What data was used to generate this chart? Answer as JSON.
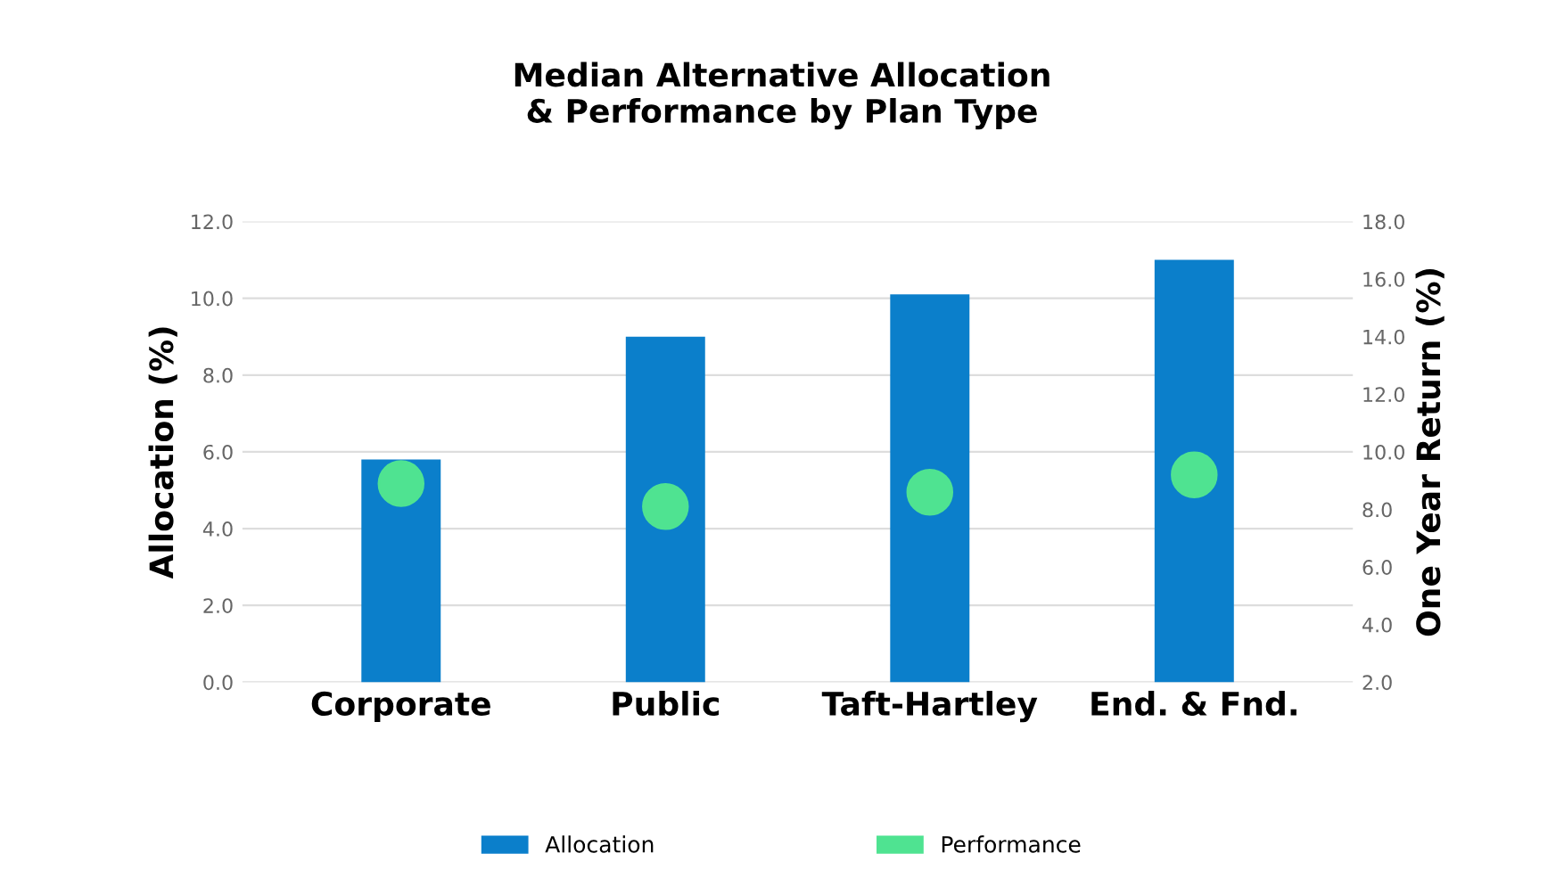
{
  "chart_data": {
    "type": "bar",
    "title": "Median Alternative Allocation\n& Performance by Plan Type",
    "categories": [
      "Corporate",
      "Public",
      "Taft-Hartley",
      "End. & Fnd."
    ],
    "series": [
      {
        "name": "Allocation",
        "color": "#0b7fcb",
        "values": [
          5.8,
          9.0,
          10.1,
          11.0
        ]
      },
      {
        "name": "Performance",
        "color": "#4fe391",
        "type": "scatter",
        "axis": "y2",
        "marker": "circle",
        "values": [
          8.9,
          8.1,
          8.6,
          9.2
        ]
      }
    ],
    "ylabel": "Allocation (%)",
    "y2label": "One Year Return (%)",
    "ylim": [
      0,
      12
    ],
    "yticks": [
      {
        "value": 0,
        "label": "0.0"
      },
      {
        "value": 2,
        "label": "2.0"
      },
      {
        "value": 4,
        "label": "4.0"
      },
      {
        "value": 6,
        "label": "6.0"
      },
      {
        "value": 8,
        "label": "8.0"
      },
      {
        "value": 10,
        "label": "10.0"
      },
      {
        "value": 12,
        "label": "12.0"
      }
    ],
    "y2lim": [
      2,
      18
    ],
    "y2ticks": [
      {
        "value": 2,
        "label": "2.0"
      },
      {
        "value": 4,
        "label": "4.0"
      },
      {
        "value": 6,
        "label": "6.0"
      },
      {
        "value": 8,
        "label": "8.0"
      },
      {
        "value": 10,
        "label": "10.0"
      },
      {
        "value": 12,
        "label": "12.0"
      },
      {
        "value": 14,
        "label": "14.0"
      },
      {
        "value": 16,
        "label": "16.0"
      },
      {
        "value": 18,
        "label": "18.0"
      }
    ],
    "grid": "y",
    "legend": "bottom"
  }
}
